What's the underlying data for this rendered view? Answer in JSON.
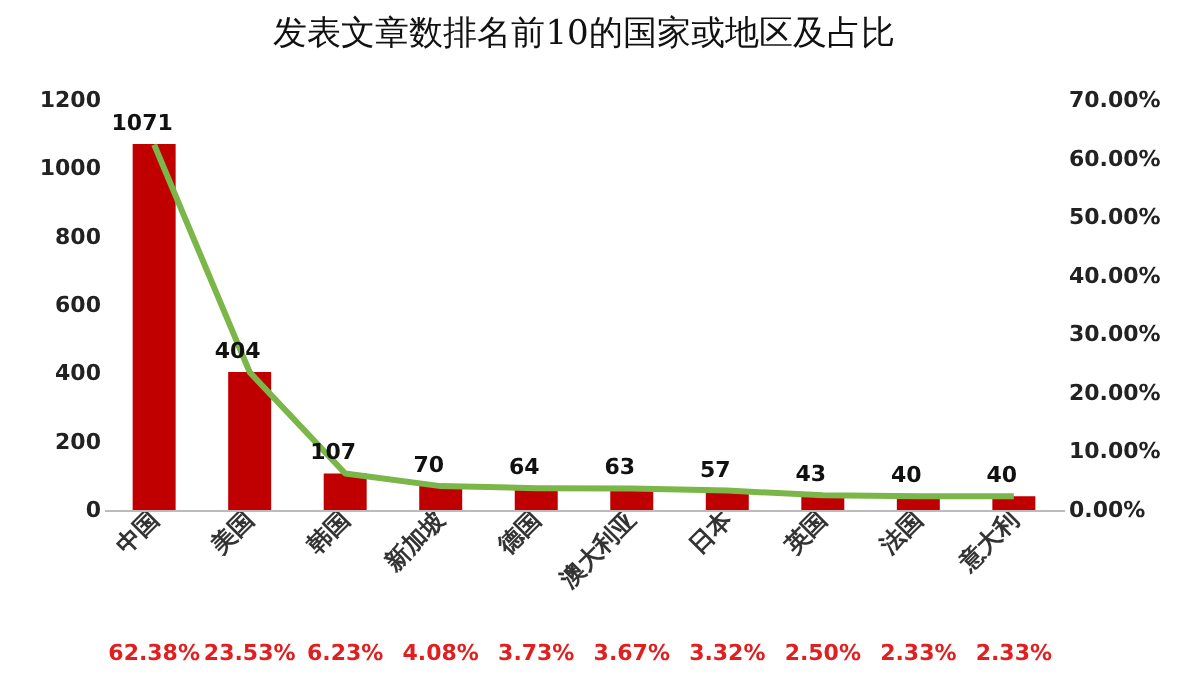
{
  "chart_data": {
    "type": "bar",
    "title": "发表文章数排名前10的国家或地区及占比",
    "categories": [
      "中国",
      "美国",
      "韩国",
      "新加坡",
      "德国",
      "澳大利亚",
      "日本",
      "英国",
      "法国",
      "意大利"
    ],
    "series": [
      {
        "color": "#c00000",
        "values": [
          1071,
          404,
          107,
          70,
          64,
          63,
          57,
          43,
          40,
          40
        ],
        "value_labels": [
          "1071",
          "404",
          "107",
          "70",
          "64",
          "63",
          "57",
          "43",
          "40",
          "40"
        ]
      },
      {
        "type": "line",
        "axis": "y2",
        "color": "#7ab648",
        "values": [
          62.38,
          23.53,
          6.23,
          4.08,
          3.73,
          3.67,
          3.32,
          2.5,
          2.33,
          2.33
        ],
        "value_labels": [
          "62.38%",
          "23.53%",
          "6.23%",
          "4.08%",
          "3.73%",
          "3.67%",
          "3.32%",
          "2.50%",
          "2.33%",
          "2.33%"
        ]
      }
    ],
    "ylim": [
      0,
      1200
    ],
    "yticks": [
      0,
      200,
      400,
      600,
      800,
      1000,
      1200
    ],
    "y2lim": [
      0,
      70
    ],
    "y2ticks": [
      {
        "value": 0,
        "label": "0.00%"
      },
      {
        "value": 10,
        "label": "10.00%"
      },
      {
        "value": 20,
        "label": "20.00%"
      },
      {
        "value": 30,
        "label": "30.00%"
      },
      {
        "value": 40,
        "label": "40.00%"
      },
      {
        "value": 50,
        "label": "50.00%"
      },
      {
        "value": 60,
        "label": "60.00%"
      },
      {
        "value": 70,
        "label": "70.00%"
      }
    ],
    "grid": false
  }
}
